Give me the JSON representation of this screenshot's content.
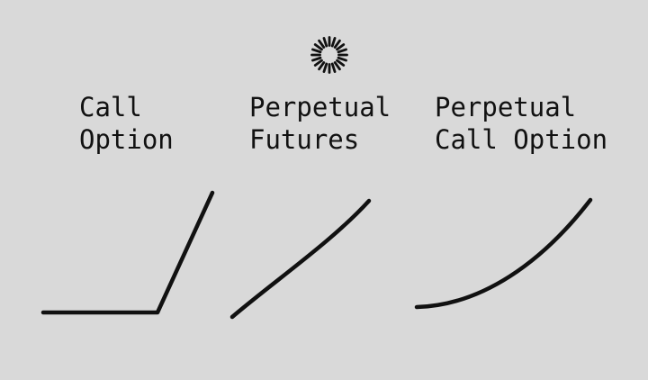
{
  "logo": {
    "icon": "sunburst-logo-icon",
    "color": "#111111"
  },
  "panels": [
    {
      "line1": "Call",
      "line2": "Option",
      "curve": "hockey-stick-payoff"
    },
    {
      "line1": "Perpetual",
      "line2": "Futures",
      "curve": "linear-payoff"
    },
    {
      "line1": "Perpetual",
      "line2": "Call Option",
      "curve": "convex-payoff"
    }
  ],
  "colors": {
    "background": "#d9d9d9",
    "ink": "#111111"
  }
}
